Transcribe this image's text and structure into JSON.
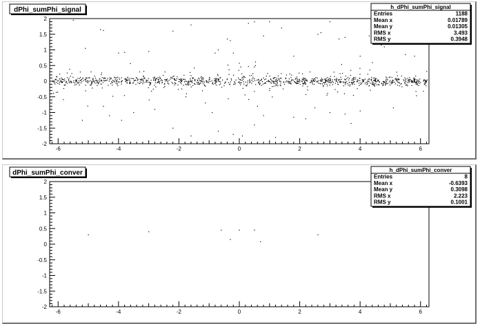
{
  "chart_data": [
    {
      "type": "scatter",
      "title": "dPhi_sumPhi_signal",
      "xlim": [
        -6.28,
        6.28
      ],
      "ylim": [
        -2,
        2
      ],
      "xticks": [
        -6,
        -4,
        -2,
        0,
        2,
        4,
        6
      ],
      "xtick_labels": [
        "-6",
        "-4",
        "-2",
        "0",
        "2",
        "4",
        "6"
      ],
      "yticks": [
        -2,
        -1.5,
        -1,
        -0.5,
        0,
        0.5,
        1,
        1.5,
        2
      ],
      "ytick_labels": [
        "-2",
        "-1.5",
        "-1",
        "-0.5",
        "0",
        "0.5",
        "1",
        "1.5",
        "2"
      ],
      "grid": false,
      "marker_color": "#000000",
      "stats": {
        "name": "h_dPhi_sumPhi_signal",
        "placement": "top-right",
        "rows": [
          {
            "label": "Entries",
            "value": "1188"
          },
          {
            "label": "Mean x",
            "value": "0.01789"
          },
          {
            "label": "Mean y",
            "value": "0.01305"
          },
          {
            "label": "RMS x",
            "value": "3.493"
          },
          {
            "label": "RMS y",
            "value": "0.3948"
          }
        ]
      },
      "outliers": [
        [
          -5.5,
          1.95
        ],
        [
          -4.6,
          1.65
        ],
        [
          -4.5,
          1.62
        ],
        [
          -5.1,
          1.05
        ],
        [
          -4.0,
          0.9
        ],
        [
          -3.8,
          0.92
        ],
        [
          -3.0,
          0.95
        ],
        [
          -2.2,
          1.6
        ],
        [
          -1.6,
          1.8
        ],
        [
          -0.8,
          0.9
        ],
        [
          -0.7,
          1.0
        ],
        [
          -0.4,
          1.35
        ],
        [
          -0.3,
          1.3
        ],
        [
          -0.2,
          0.9
        ],
        [
          0.3,
          1.85
        ],
        [
          0.5,
          1.9
        ],
        [
          0.8,
          1.45
        ],
        [
          1.0,
          1.9
        ],
        [
          1.4,
          1.7
        ],
        [
          1.8,
          0.8
        ],
        [
          2.6,
          1.5
        ],
        [
          2.7,
          1.55
        ],
        [
          3.0,
          1.9
        ],
        [
          3.3,
          1.35
        ],
        [
          3.5,
          1.4
        ],
        [
          4.0,
          0.8
        ],
        [
          4.3,
          1.45
        ],
        [
          4.7,
          1.15
        ],
        [
          4.8,
          1.1
        ],
        [
          5.5,
          0.85
        ],
        [
          5.8,
          0.8
        ],
        [
          -5.2,
          -1.25
        ],
        [
          -4.3,
          -1.1
        ],
        [
          -3.9,
          -1.25
        ],
        [
          -3.5,
          -1.0
        ],
        [
          -2.2,
          -1.5
        ],
        [
          -1.6,
          -1.75
        ],
        [
          -0.9,
          -1.0
        ],
        [
          -0.7,
          -1.6
        ],
        [
          -0.2,
          -1.7
        ],
        [
          0.1,
          -1.75
        ],
        [
          0.5,
          -1.4
        ],
        [
          0.8,
          -1.1
        ],
        [
          1.2,
          -1.8
        ],
        [
          1.8,
          -1.15
        ],
        [
          2.2,
          -1.2
        ],
        [
          3.0,
          -1.0
        ],
        [
          3.5,
          -1.05
        ],
        [
          3.7,
          -1.35
        ],
        [
          4.0,
          -0.95
        ],
        [
          5.1,
          -0.85
        ],
        [
          -4.5,
          -0.8
        ],
        [
          -2.8,
          -0.9
        ],
        [
          0.6,
          -0.8
        ],
        [
          2.5,
          -0.85
        ]
      ]
    },
    {
      "type": "scatter",
      "title": "dPhi_sumPhi_conver",
      "xlim": [
        -6.28,
        6.28
      ],
      "ylim": [
        -2,
        2
      ],
      "xticks": [
        -6,
        -4,
        -2,
        0,
        2,
        4,
        6
      ],
      "xtick_labels": [
        "-6",
        "-4",
        "-2",
        "0",
        "2",
        "4",
        "6"
      ],
      "yticks": [
        -2,
        -1.5,
        -1,
        -0.5,
        0,
        0.5,
        1,
        1.5,
        2
      ],
      "ytick_labels": [
        "-2",
        "-1.5",
        "-1",
        "-0.5",
        "0",
        "0.5",
        "1",
        "1.5",
        "2"
      ],
      "grid": false,
      "marker_color": "#000000",
      "stats": {
        "name": "h_dPhi_sumPhi_conver",
        "placement": "top-right",
        "rows": [
          {
            "label": "Entries",
            "value": "8"
          },
          {
            "label": "Mean x",
            "value": "-0.6393"
          },
          {
            "label": "Mean y",
            "value": "0.3098"
          },
          {
            "label": "RMS x",
            "value": "2.223"
          },
          {
            "label": "RMS y",
            "value": "0.1001"
          }
        ]
      },
      "points": [
        [
          -5.0,
          0.3
        ],
        [
          -3.0,
          0.4
        ],
        [
          -0.6,
          0.45
        ],
        [
          -0.3,
          0.15
        ],
        [
          0.0,
          0.45
        ],
        [
          0.5,
          0.45
        ],
        [
          0.7,
          0.08
        ],
        [
          2.6,
          0.3
        ]
      ]
    }
  ]
}
